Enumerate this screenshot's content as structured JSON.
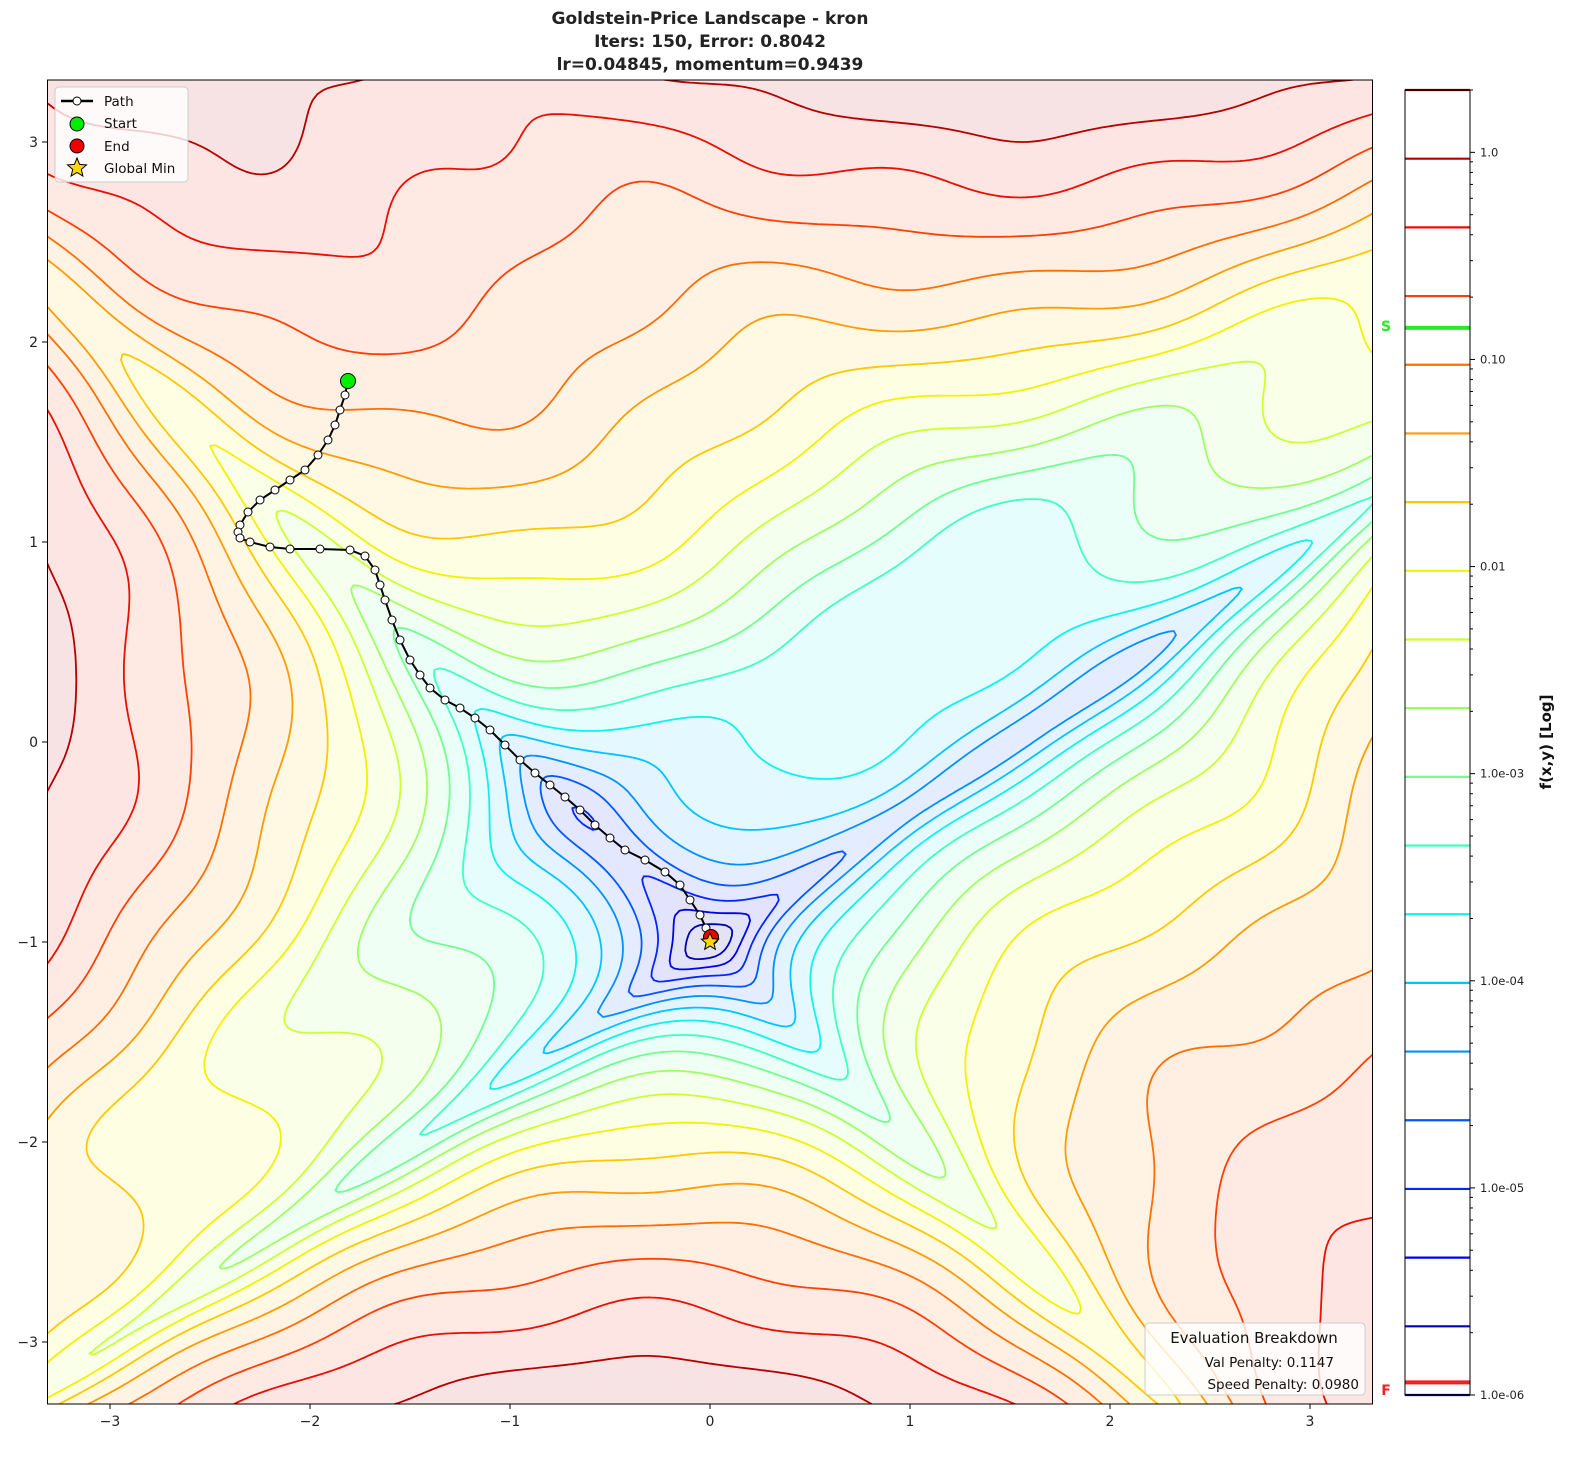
{
  "title": {
    "line1": "Goldstein-Price Landscape - kron",
    "line2": "Iters: 150, Error: 0.8042",
    "line3": "lr=0.04845, momentum=0.9439"
  },
  "legend": {
    "path": "Path",
    "start": "Start",
    "end": "End",
    "global_min": "Global Min"
  },
  "evaluation": {
    "title": "Evaluation Breakdown",
    "val_penalty": "Val Penalty: 0.1147",
    "speed_penalty": "Speed Penalty: 0.0980"
  },
  "colorbar": {
    "label": "f(x,y) [Log]",
    "start_marker": "S",
    "end_marker": "F",
    "start_marker_color": "#22ee22",
    "end_marker_color": "#ee2222",
    "tick_labels": [
      "1.0e-06",
      "1.0e-05",
      "1.0e-04",
      "1.0e-03",
      "0.01",
      "0.10",
      "1.0"
    ]
  },
  "chart_data": {
    "type": "contour",
    "function": "Goldstein-Price",
    "xlim": [
      -3.3125,
      3.3125
    ],
    "ylim": [
      -3.3125,
      3.3125
    ],
    "xticks": [
      -3,
      -2,
      -1,
      0,
      1,
      2,
      3
    ],
    "xtick_labels": [
      "−3",
      "−2",
      "−1",
      "0",
      "1",
      "2",
      "3"
    ],
    "yticks": [
      -3,
      -2,
      -1,
      0,
      1,
      2,
      3
    ],
    "ytick_labels": [
      "−3",
      "−2",
      "−1",
      "0",
      "1",
      "2",
      "3"
    ],
    "color_scale": "log",
    "color_range": [
      1e-06,
      2.0
    ],
    "colorbar_ticks": [
      1e-06,
      1e-05,
      0.0001,
      0.001,
      0.01,
      0.1,
      1
    ],
    "level_count": 20,
    "level_colors": [
      "#00007f",
      "#0000b8",
      "#0000ee",
      "#0028ff",
      "#0058ff",
      "#0090ff",
      "#00c4ff",
      "#10f0ee",
      "#40ffc0",
      "#70ff90",
      "#a0ff60",
      "#cdff30",
      "#f2f200",
      "#ffc800",
      "#ff9c00",
      "#ff6e00",
      "#ff4000",
      "#e81000",
      "#b40000",
      "#7f0000"
    ],
    "start_value_marker": 0.142,
    "end_value_marker": 1.1e-06,
    "path": [
      [
        -1.81,
        1.805
      ],
      [
        -1.825,
        1.735
      ],
      [
        -1.85,
        1.66
      ],
      [
        -1.875,
        1.585
      ],
      [
        -1.91,
        1.51
      ],
      [
        -1.96,
        1.435
      ],
      [
        -2.025,
        1.36
      ],
      [
        -2.1,
        1.31
      ],
      [
        -2.175,
        1.26
      ],
      [
        -2.25,
        1.21
      ],
      [
        -2.31,
        1.15
      ],
      [
        -2.35,
        1.085
      ],
      [
        -2.36,
        1.05
      ],
      [
        -2.35,
        1.02
      ],
      [
        -2.3,
        1.0
      ],
      [
        -2.2,
        0.975
      ],
      [
        -2.1,
        0.965
      ],
      [
        -1.95,
        0.965
      ],
      [
        -1.8,
        0.96
      ],
      [
        -1.725,
        0.93
      ],
      [
        -1.675,
        0.86
      ],
      [
        -1.65,
        0.785
      ],
      [
        -1.625,
        0.71
      ],
      [
        -1.59,
        0.61
      ],
      [
        -1.55,
        0.51
      ],
      [
        -1.5,
        0.41
      ],
      [
        -1.45,
        0.335
      ],
      [
        -1.4,
        0.27
      ],
      [
        -1.325,
        0.21
      ],
      [
        -1.25,
        0.17
      ],
      [
        -1.175,
        0.12
      ],
      [
        -1.1,
        0.06
      ],
      [
        -1.025,
        -0.015
      ],
      [
        -0.95,
        -0.09
      ],
      [
        -0.875,
        -0.155
      ],
      [
        -0.8,
        -0.215
      ],
      [
        -0.725,
        -0.275
      ],
      [
        -0.65,
        -0.34
      ],
      [
        -0.575,
        -0.415
      ],
      [
        -0.5,
        -0.48
      ],
      [
        -0.425,
        -0.54
      ],
      [
        -0.325,
        -0.59
      ],
      [
        -0.225,
        -0.65
      ],
      [
        -0.15,
        -0.715
      ],
      [
        -0.1,
        -0.79
      ],
      [
        -0.05,
        -0.865
      ],
      [
        -0.02,
        -0.93
      ],
      [
        0.0,
        -0.965
      ]
    ],
    "start": [
      -1.81,
      1.805
    ],
    "end": [
      0.005,
      -0.975
    ],
    "global_min": [
      0,
      -1
    ],
    "colors": {
      "path": "#000000",
      "path_marker": "#ffffff",
      "start": "#00ee00",
      "end": "#ee0000",
      "global_min": "#ffd700"
    }
  }
}
